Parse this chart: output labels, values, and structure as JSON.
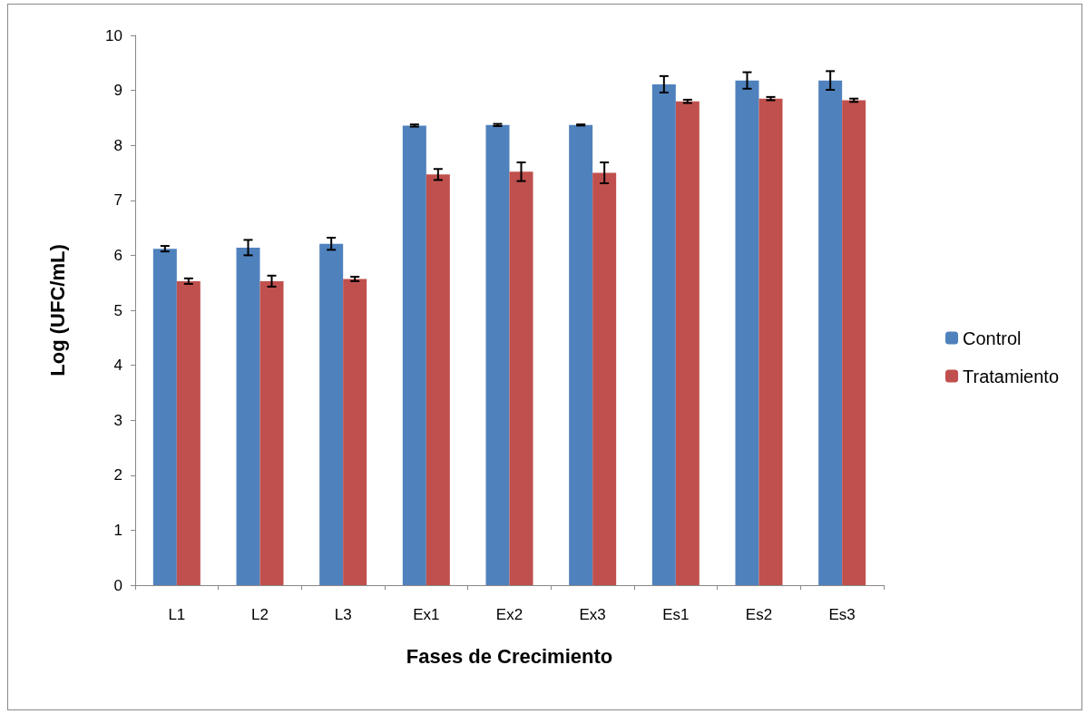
{
  "chart_data": {
    "type": "bar",
    "xlabel": "Fases de Crecimiento",
    "ylabel": "Log (UFC/mL)",
    "categories": [
      "L1",
      "L2",
      "L3",
      "Ex1",
      "Ex2",
      "Ex3",
      "Es1",
      "Es2",
      "Es3"
    ],
    "series": [
      {
        "name": "Control",
        "color": "#4f81bd",
        "values": [
          6.12,
          6.14,
          6.21,
          8.36,
          8.37,
          8.37,
          9.11,
          9.18,
          9.18
        ],
        "errors": [
          0.05,
          0.14,
          0.11,
          0.02,
          0.02,
          0.01,
          0.15,
          0.15,
          0.17
        ]
      },
      {
        "name": "Tratamiento",
        "color": "#c0504d",
        "values": [
          5.53,
          5.53,
          5.57,
          7.47,
          7.52,
          7.5,
          8.8,
          8.85,
          8.82
        ],
        "errors": [
          0.05,
          0.1,
          0.04,
          0.1,
          0.17,
          0.19,
          0.03,
          0.03,
          0.03
        ]
      }
    ],
    "ylim": [
      0,
      10
    ],
    "yticks": [
      0,
      1,
      2,
      3,
      4,
      5,
      6,
      7,
      8,
      9,
      10
    ],
    "grid": false,
    "legend": "right"
  }
}
